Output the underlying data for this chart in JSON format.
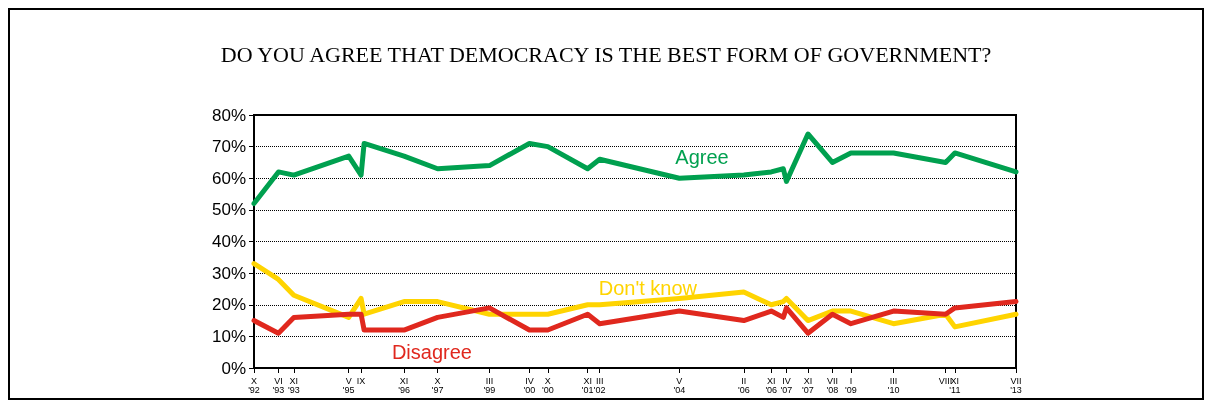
{
  "chart_data": {
    "type": "line",
    "title": "DO YOU AGREE THAT DEMOCRACY IS THE BEST FORM OF GOVERNMENT?",
    "x": [
      "1992-10",
      "1993-06",
      "1993-11",
      "1995-05",
      "1995-09",
      "1995-10",
      "1996-11",
      "1997-10",
      "1999-03",
      "2000-04",
      "2000-10",
      "2001-11",
      "2002-03",
      "2004-05",
      "2006-02",
      "2006-11",
      "2007-03",
      "2007-04",
      "2007-11",
      "2008-07",
      "2009-01",
      "2010-03",
      "2011-08",
      "2011-11",
      "2013-07"
    ],
    "series": [
      {
        "name": "Agree",
        "color": "#00a04f",
        "values": [
          52,
          62,
          61,
          67,
          61,
          71,
          67,
          63,
          64,
          71,
          70,
          63,
          66,
          60,
          61,
          62,
          63,
          59,
          74,
          65,
          68,
          68,
          65,
          68,
          62
        ]
      },
      {
        "name": "Don't know",
        "color": "#ffd400",
        "values": [
          33,
          28,
          23,
          16,
          22,
          17,
          21,
          21,
          17,
          17,
          17,
          20,
          20,
          22,
          24,
          20,
          21,
          22,
          15,
          18,
          18,
          14,
          17,
          13,
          17
        ]
      },
      {
        "name": "Disagree",
        "color": "#e0281e",
        "values": [
          15,
          11,
          16,
          17,
          17,
          12,
          12,
          16,
          19,
          12,
          12,
          17,
          14,
          18,
          15,
          18,
          16,
          19,
          11,
          17,
          14,
          18,
          17,
          19,
          21
        ]
      }
    ],
    "xlim": [
      "1992-10",
      "2013-07"
    ],
    "xticks": [
      {
        "value": "1992-10",
        "label": "X\n'92"
      },
      {
        "value": "1993-06",
        "label": "VI\n'93"
      },
      {
        "value": "1993-11",
        "label": "XI\n'93"
      },
      {
        "value": "1995-05",
        "label": "V\n'95"
      },
      {
        "value": "1995-09",
        "label": "IX\n"
      },
      {
        "value": "1996-11",
        "label": "XI\n'96"
      },
      {
        "value": "1997-10",
        "label": "X\n'97"
      },
      {
        "value": "1999-03",
        "label": "III\n'99"
      },
      {
        "value": "2000-04",
        "label": "IV\n'00"
      },
      {
        "value": "2000-10",
        "label": "X\n'00"
      },
      {
        "value": "2001-11",
        "label": "XI\n'01"
      },
      {
        "value": "2002-03",
        "label": "III\n'02"
      },
      {
        "value": "2004-05",
        "label": "V\n'04"
      },
      {
        "value": "2006-02",
        "label": "II\n'06"
      },
      {
        "value": "2006-11",
        "label": "XI\n'06"
      },
      {
        "value": "2007-04",
        "label": "IV\n'07"
      },
      {
        "value": "2007-11",
        "label": "XI\n'07"
      },
      {
        "value": "2008-07",
        "label": "VII\n'08"
      },
      {
        "value": "2009-01",
        "label": "I\n'09"
      },
      {
        "value": "2010-03",
        "label": "III\n'10"
      },
      {
        "value": "2011-08",
        "label": "VIII\n"
      },
      {
        "value": "2011-11",
        "label": "XI\n'11"
      },
      {
        "value": "2013-07",
        "label": "VII\n'13"
      }
    ],
    "ylim": [
      0,
      80
    ],
    "yticks": [
      {
        "value": 0,
        "label": "0%"
      },
      {
        "value": 10,
        "label": "10%"
      },
      {
        "value": 20,
        "label": "20%"
      },
      {
        "value": 30,
        "label": "30%"
      },
      {
        "value": 40,
        "label": "40%"
      },
      {
        "value": 50,
        "label": "50%"
      },
      {
        "value": 60,
        "label": "60%"
      },
      {
        "value": 70,
        "label": "70%"
      },
      {
        "value": 80,
        "label": "80%"
      }
    ],
    "grid": "y",
    "legend": false,
    "marker": "none",
    "line_style": "solid"
  }
}
